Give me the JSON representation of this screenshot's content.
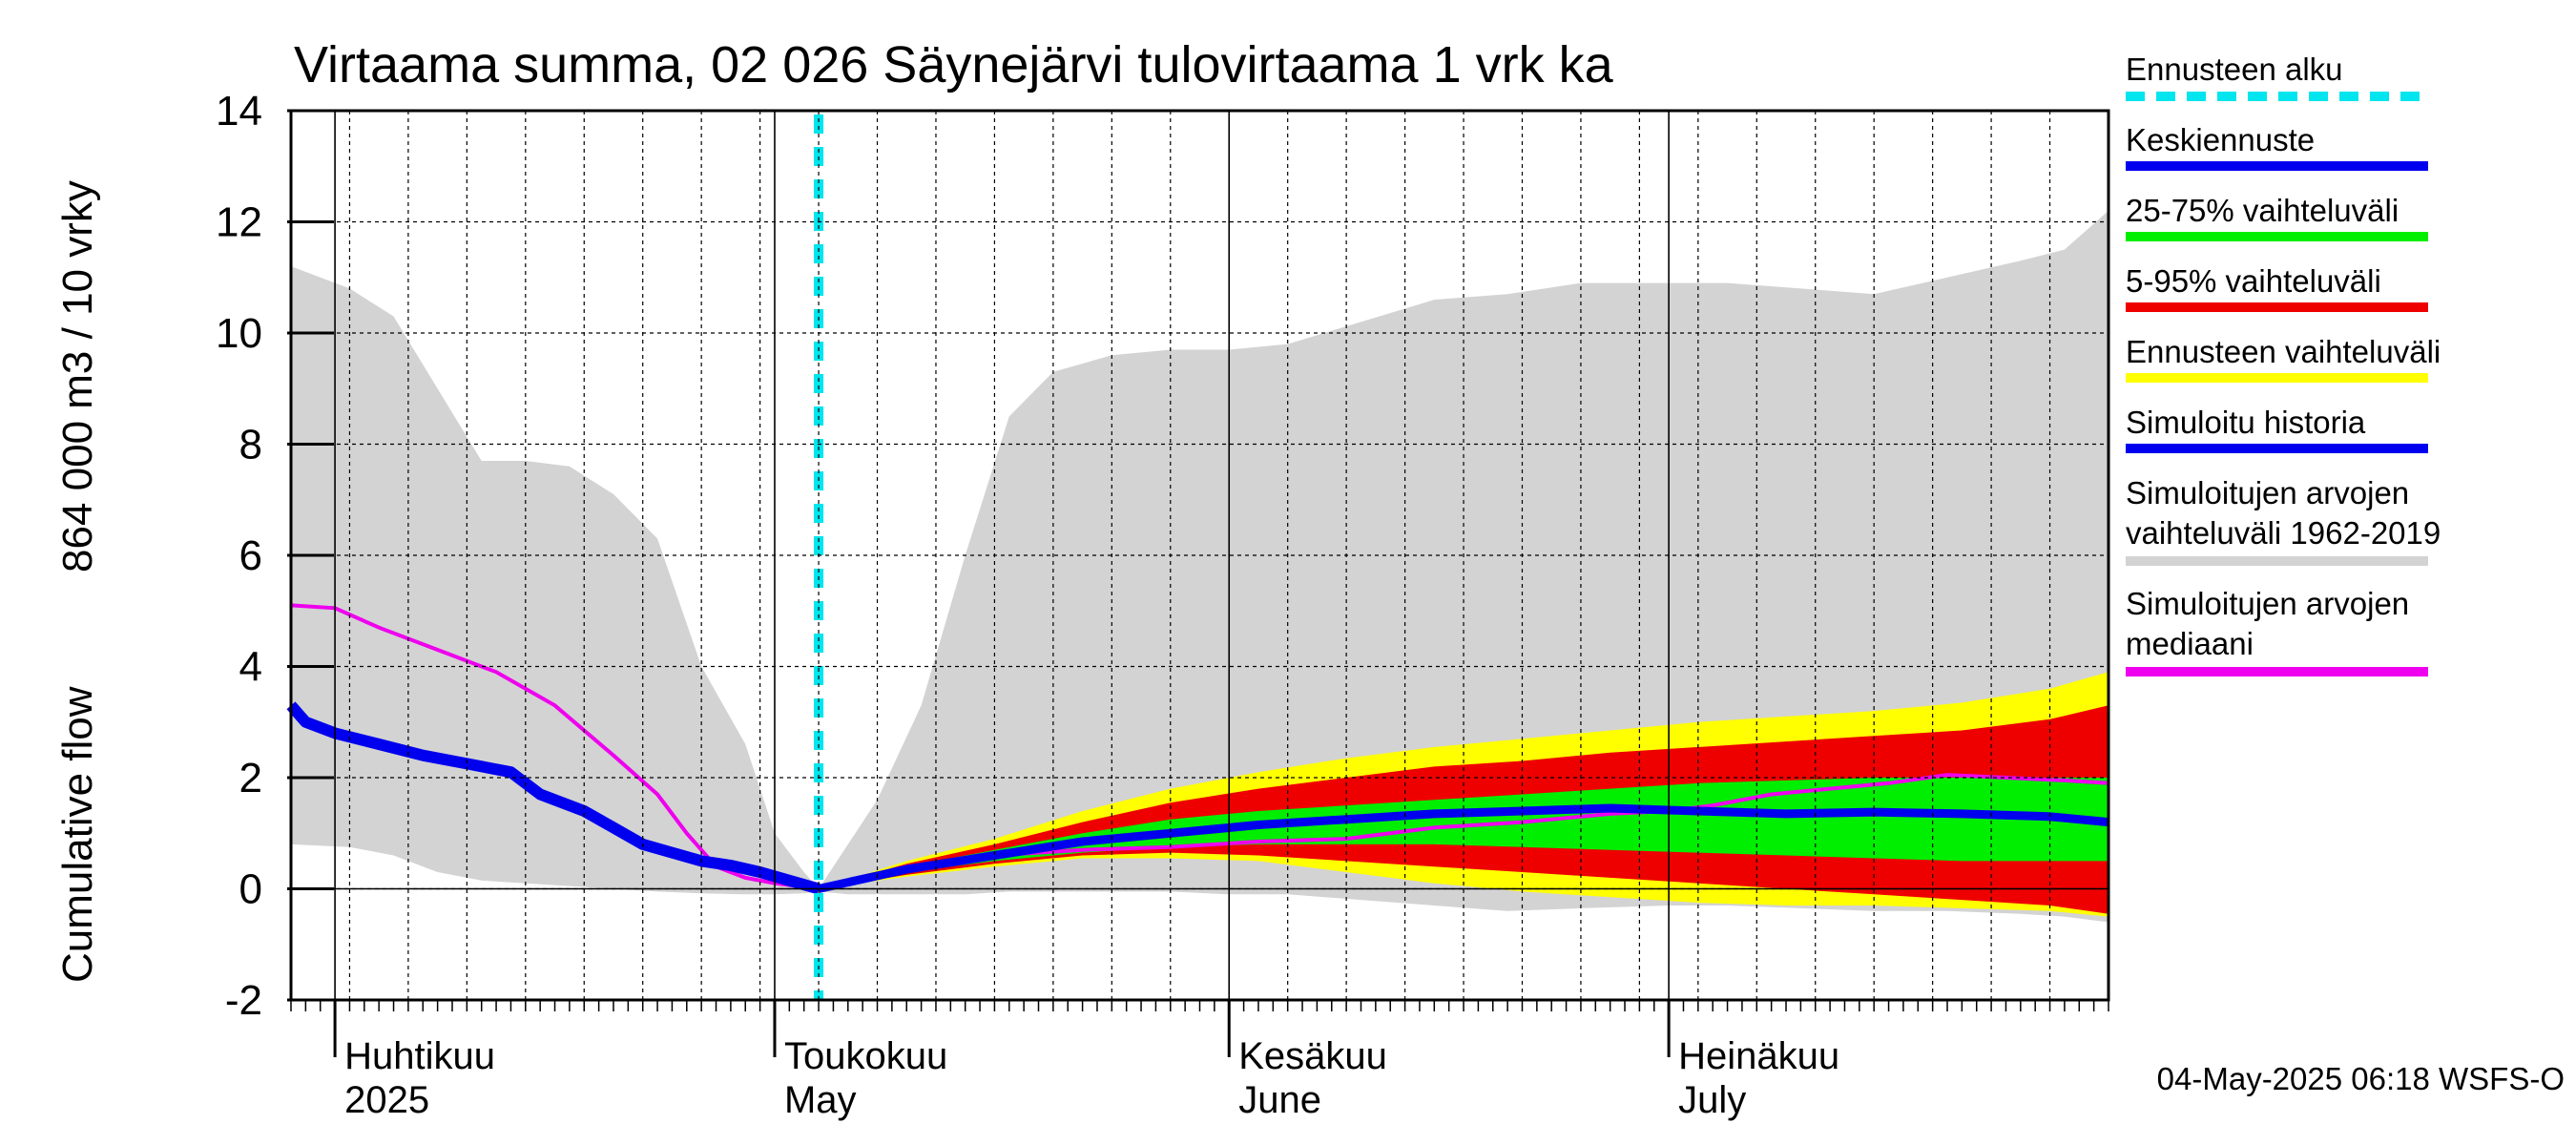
{
  "chart_data": {
    "type": "area",
    "title": "Virtaama summa, 02 026 Säynejärvi tulovirtaama 1 vrk ka",
    "ylabel_top": "864 000 m3 / 10 vrky",
    "ylabel_bottom": "Cumulative flow",
    "ylim": [
      -2,
      14
    ],
    "yticks": [
      "-2",
      "0",
      "2",
      "4",
      "6",
      "8",
      "10",
      "12",
      "14"
    ],
    "x_start": "2025-03-29",
    "x_end": "2025-07-31",
    "grid": true,
    "forecast_start": "2025-05-04",
    "months": [
      {
        "fi": "Huhtikuu",
        "en": "2025",
        "date": "2025-04-01"
      },
      {
        "fi": "Toukokuu",
        "en": "May",
        "date": "2025-05-01"
      },
      {
        "fi": "Kesäkuu",
        "en": "June",
        "date": "2025-06-01"
      },
      {
        "fi": "Heinäkuu",
        "en": "July",
        "date": "2025-07-01"
      }
    ],
    "legend": [
      {
        "label": "Ennusteen alku",
        "color": "#00e5ee",
        "style": "dashed"
      },
      {
        "label": "Keskiennuste",
        "color": "#0000ee",
        "style": "line"
      },
      {
        "label": "25-75% vaihteluväli",
        "color": "#00ee00",
        "style": "line"
      },
      {
        "label": "5-95% vaihteluväli",
        "color": "#ee0000",
        "style": "line"
      },
      {
        "label": "Ennusteen vaihteluväli",
        "color": "#ffff00",
        "style": "line"
      },
      {
        "label": "Simuloitu historia",
        "color": "#0000ee",
        "style": "line"
      },
      {
        "label": "Simuloitujen arvojen vaihteluväli 1962-2019",
        "color": "#d3d3d3",
        "style": "line"
      },
      {
        "label": "Simuloitujen arvojen mediaani",
        "color": "#ee00ee",
        "style": "line"
      }
    ],
    "series": {
      "hist_range": {
        "x": [
          "2025-03-29",
          "2025-04-02",
          "2025-04-05",
          "2025-04-08",
          "2025-04-11",
          "2025-04-14",
          "2025-04-17",
          "2025-04-20",
          "2025-04-23",
          "2025-04-26",
          "2025-04-29",
          "2025-05-01",
          "2025-05-03",
          "2025-05-04",
          "2025-05-06",
          "2025-05-08",
          "2025-05-11",
          "2025-05-14",
          "2025-05-17",
          "2025-05-20",
          "2025-05-24",
          "2025-05-28",
          "2025-06-01",
          "2025-06-05",
          "2025-06-10",
          "2025-06-15",
          "2025-06-20",
          "2025-06-25",
          "2025-07-01",
          "2025-07-05",
          "2025-07-10",
          "2025-07-15",
          "2025-07-20",
          "2025-07-25",
          "2025-07-28",
          "2025-07-31"
        ],
        "upper": [
          11.2,
          10.8,
          10.3,
          9.0,
          7.7,
          7.7,
          7.6,
          7.1,
          6.3,
          4.0,
          2.6,
          1.0,
          0.3,
          0.0,
          0.8,
          1.6,
          3.3,
          6.0,
          8.5,
          9.3,
          9.6,
          9.7,
          9.7,
          9.8,
          10.2,
          10.6,
          10.7,
          10.9,
          10.9,
          10.9,
          10.8,
          10.7,
          11.0,
          11.3,
          11.5,
          12.2
        ],
        "lower": [
          0.8,
          0.75,
          0.6,
          0.3,
          0.15,
          0.1,
          0.05,
          0.0,
          -0.05,
          -0.08,
          -0.1,
          -0.1,
          -0.08,
          -0.05,
          -0.1,
          -0.1,
          -0.1,
          -0.1,
          -0.05,
          -0.05,
          -0.05,
          -0.05,
          -0.1,
          -0.1,
          -0.2,
          -0.3,
          -0.4,
          -0.35,
          -0.3,
          -0.3,
          -0.35,
          -0.4,
          -0.4,
          -0.45,
          -0.5,
          -0.6
        ]
      },
      "hist_median": {
        "x": [
          "2025-03-29",
          "2025-04-01",
          "2025-04-04",
          "2025-04-08",
          "2025-04-12",
          "2025-04-16",
          "2025-04-20",
          "2025-04-23",
          "2025-04-25",
          "2025-04-27",
          "2025-04-29",
          "2025-05-01",
          "2025-05-04",
          "2025-05-10",
          "2025-05-16",
          "2025-05-22",
          "2025-05-28",
          "2025-06-03",
          "2025-06-09",
          "2025-06-15",
          "2025-06-21",
          "2025-06-27",
          "2025-07-01",
          "2025-07-04",
          "2025-07-08",
          "2025-07-12",
          "2025-07-16",
          "2025-07-20",
          "2025-07-24",
          "2025-07-28",
          "2025-07-31"
        ],
        "values": [
          5.1,
          5.05,
          4.7,
          4.3,
          3.9,
          3.3,
          2.4,
          1.7,
          1.0,
          0.4,
          0.2,
          0.1,
          0.0,
          0.4,
          0.6,
          0.7,
          0.75,
          0.85,
          0.9,
          1.1,
          1.2,
          1.35,
          1.4,
          1.5,
          1.7,
          1.8,
          1.9,
          2.05,
          2.0,
          1.95,
          1.9
        ]
      },
      "simulated_history": {
        "x": [
          "2025-03-29",
          "2025-03-30",
          "2025-04-01",
          "2025-04-04",
          "2025-04-07",
          "2025-04-10",
          "2025-04-13",
          "2025-04-15",
          "2025-04-18",
          "2025-04-20",
          "2025-04-22",
          "2025-04-24",
          "2025-04-26",
          "2025-04-28",
          "2025-04-30",
          "2025-05-02",
          "2025-05-04"
        ],
        "values": [
          3.3,
          3.0,
          2.8,
          2.6,
          2.4,
          2.25,
          2.1,
          1.7,
          1.4,
          1.1,
          0.8,
          0.65,
          0.5,
          0.42,
          0.3,
          0.15,
          0.0
        ]
      },
      "forecast": {
        "x": [
          "2025-05-04",
          "2025-05-10",
          "2025-05-16",
          "2025-05-22",
          "2025-05-28",
          "2025-06-03",
          "2025-06-09",
          "2025-06-15",
          "2025-06-21",
          "2025-06-27",
          "2025-07-03",
          "2025-07-09",
          "2025-07-15",
          "2025-07-21",
          "2025-07-27",
          "2025-07-31"
        ],
        "mean": [
          0.0,
          0.35,
          0.6,
          0.85,
          1.0,
          1.15,
          1.25,
          1.35,
          1.4,
          1.45,
          1.4,
          1.35,
          1.38,
          1.35,
          1.3,
          1.2
        ],
        "p25": [
          0.0,
          0.3,
          0.5,
          0.65,
          0.75,
          0.8,
          0.8,
          0.8,
          0.75,
          0.7,
          0.65,
          0.6,
          0.55,
          0.5,
          0.5,
          0.5
        ],
        "p75": [
          0.0,
          0.4,
          0.7,
          1.0,
          1.25,
          1.4,
          1.5,
          1.6,
          1.7,
          1.8,
          1.9,
          1.95,
          2.0,
          2.0,
          2.0,
          2.0
        ],
        "p05": [
          0.0,
          0.25,
          0.45,
          0.6,
          0.65,
          0.6,
          0.5,
          0.4,
          0.3,
          0.2,
          0.1,
          0.0,
          -0.1,
          -0.2,
          -0.3,
          -0.45
        ],
        "p95": [
          0.0,
          0.45,
          0.8,
          1.2,
          1.55,
          1.8,
          2.0,
          2.2,
          2.3,
          2.45,
          2.55,
          2.65,
          2.75,
          2.85,
          3.05,
          3.3
        ],
        "min": [
          0.0,
          0.22,
          0.4,
          0.55,
          0.55,
          0.5,
          0.3,
          0.1,
          -0.05,
          -0.15,
          -0.25,
          -0.3,
          -0.3,
          -0.35,
          -0.4,
          -0.5
        ],
        "max": [
          0.0,
          0.5,
          0.9,
          1.4,
          1.8,
          2.1,
          2.35,
          2.55,
          2.7,
          2.85,
          3.0,
          3.1,
          3.2,
          3.35,
          3.6,
          3.9
        ]
      }
    }
  },
  "footer": {
    "timestamp": "04-May-2025 06:18 WSFS-O"
  }
}
